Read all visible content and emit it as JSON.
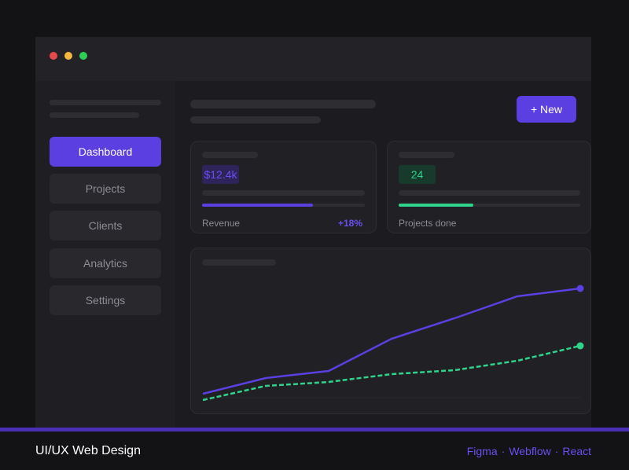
{
  "window": {
    "controls": [
      "close",
      "minimize",
      "maximize"
    ]
  },
  "sidebar": {
    "items": [
      {
        "label": "Dashboard",
        "active": true
      },
      {
        "label": "Projects",
        "active": false
      },
      {
        "label": "Clients",
        "active": false
      },
      {
        "label": "Analytics",
        "active": false
      },
      {
        "label": "Settings",
        "active": false
      }
    ]
  },
  "header": {
    "new_button_label": "+ New"
  },
  "cards": {
    "revenue": {
      "value": "$12.4k",
      "label": "Revenue",
      "delta": "+18%",
      "progress": 0.68,
      "color": "#5b3fe0"
    },
    "projects": {
      "value": "24",
      "label": "Projects done",
      "progress": 0.41,
      "color": "#2fd38b"
    }
  },
  "chart_data": {
    "type": "line",
    "x": [
      0,
      1,
      2,
      3,
      4,
      5,
      6
    ],
    "series": [
      {
        "values": [
          10,
          30,
          39,
          80,
          106,
          134,
          144
        ],
        "color": "#5b3fe0",
        "style": "solid"
      },
      {
        "values": [
          2,
          20,
          25,
          35,
          40,
          52,
          71
        ],
        "color": "#2fd38b",
        "style": "dashed"
      }
    ],
    "ylim": [
      0,
      160
    ],
    "grid": false,
    "title": "",
    "xlabel": "",
    "ylabel": ""
  },
  "footer": {
    "title": "UI/UX Web Design",
    "tools": [
      "Figma",
      "Webflow",
      "React"
    ],
    "accent": "#6a4ff0"
  }
}
